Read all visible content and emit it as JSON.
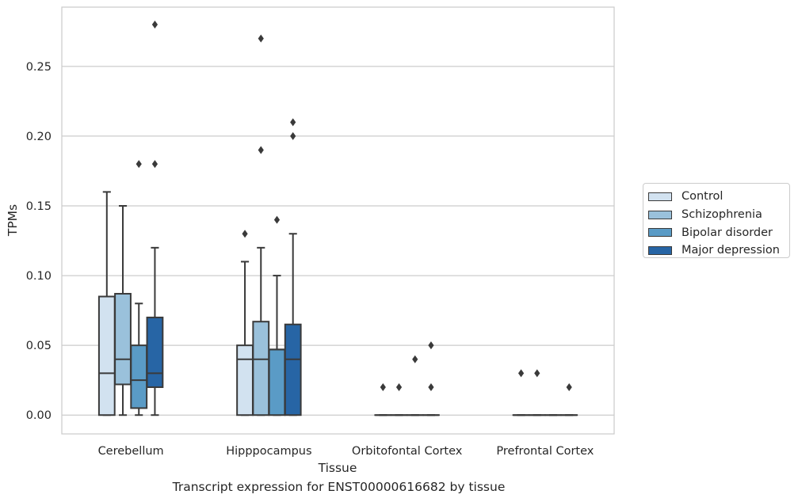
{
  "chart_data": {
    "type": "box",
    "title": "Transcript expression for ENST00000616682 by tissue",
    "xlabel": "Tissue",
    "ylabel": "TPMs",
    "ylim": [
      -0.0135,
      0.2925
    ],
    "yticks": [
      "0.00",
      "0.05",
      "0.10",
      "0.15",
      "0.20",
      "0.25"
    ],
    "ytick_values": [
      0,
      0.05,
      0.1,
      0.15,
      0.2,
      0.25
    ],
    "grid": "horizontal",
    "legend_placement": "right",
    "categories": [
      "Cerebellum",
      "Hipppocampus",
      "Orbitofontal Cortex",
      "Prefrontal Cortex"
    ],
    "series": [
      {
        "name": "Control",
        "color": "#d2e2f0",
        "boxes": [
          {
            "min": 0,
            "q1": 0,
            "median": 0.03,
            "q3": 0.085,
            "max": 0.16,
            "outliers": []
          },
          {
            "min": 0,
            "q1": 0,
            "median": 0.04,
            "q3": 0.05,
            "max": 0.11,
            "outliers": [
              0.13
            ]
          },
          {
            "min": 0,
            "q1": 0,
            "median": 0,
            "q3": 0,
            "max": 0,
            "outliers": [
              0.02
            ]
          },
          {
            "min": 0,
            "q1": 0,
            "median": 0,
            "q3": 0,
            "max": 0,
            "outliers": [
              0.03
            ]
          }
        ]
      },
      {
        "name": "Schizophrenia",
        "color": "#9ac1db",
        "boxes": [
          {
            "min": 0,
            "q1": 0.022,
            "median": 0.04,
            "q3": 0.087,
            "max": 0.15,
            "outliers": []
          },
          {
            "min": 0,
            "q1": 0,
            "median": 0.04,
            "q3": 0.067,
            "max": 0.12,
            "outliers": [
              0.19,
              0.27
            ]
          },
          {
            "min": 0,
            "q1": 0,
            "median": 0,
            "q3": 0,
            "max": 0,
            "outliers": [
              0.02
            ]
          },
          {
            "min": 0,
            "q1": 0,
            "median": 0,
            "q3": 0,
            "max": 0,
            "outliers": [
              0.03
            ]
          }
        ]
      },
      {
        "name": "Bipolar disorder",
        "color": "#5a9bc6",
        "boxes": [
          {
            "min": 0,
            "q1": 0.005,
            "median": 0.025,
            "q3": 0.05,
            "max": 0.08,
            "outliers": [
              0.18
            ]
          },
          {
            "min": 0,
            "q1": 0,
            "median": 0.047,
            "q3": 0.047,
            "max": 0.1,
            "outliers": [
              0.14
            ]
          },
          {
            "min": 0,
            "q1": 0,
            "median": 0,
            "q3": 0,
            "max": 0,
            "outliers": [
              0.04
            ]
          },
          {
            "min": 0,
            "q1": 0,
            "median": 0,
            "q3": 0,
            "max": 0,
            "outliers": []
          }
        ]
      },
      {
        "name": "Major depression",
        "color": "#2765a5",
        "boxes": [
          {
            "min": 0,
            "q1": 0.02,
            "median": 0.03,
            "q3": 0.07,
            "max": 0.12,
            "outliers": [
              0.18,
              0.28
            ]
          },
          {
            "min": 0,
            "q1": 0,
            "median": 0.04,
            "q3": 0.065,
            "max": 0.13,
            "outliers": [
              0.2,
              0.21
            ]
          },
          {
            "min": 0,
            "q1": 0,
            "median": 0,
            "q3": 0,
            "max": 0,
            "outliers": [
              0.02,
              0.05
            ]
          },
          {
            "min": 0,
            "q1": 0,
            "median": 0,
            "q3": 0,
            "max": 0,
            "outliers": [
              0.02
            ]
          }
        ]
      }
    ]
  }
}
